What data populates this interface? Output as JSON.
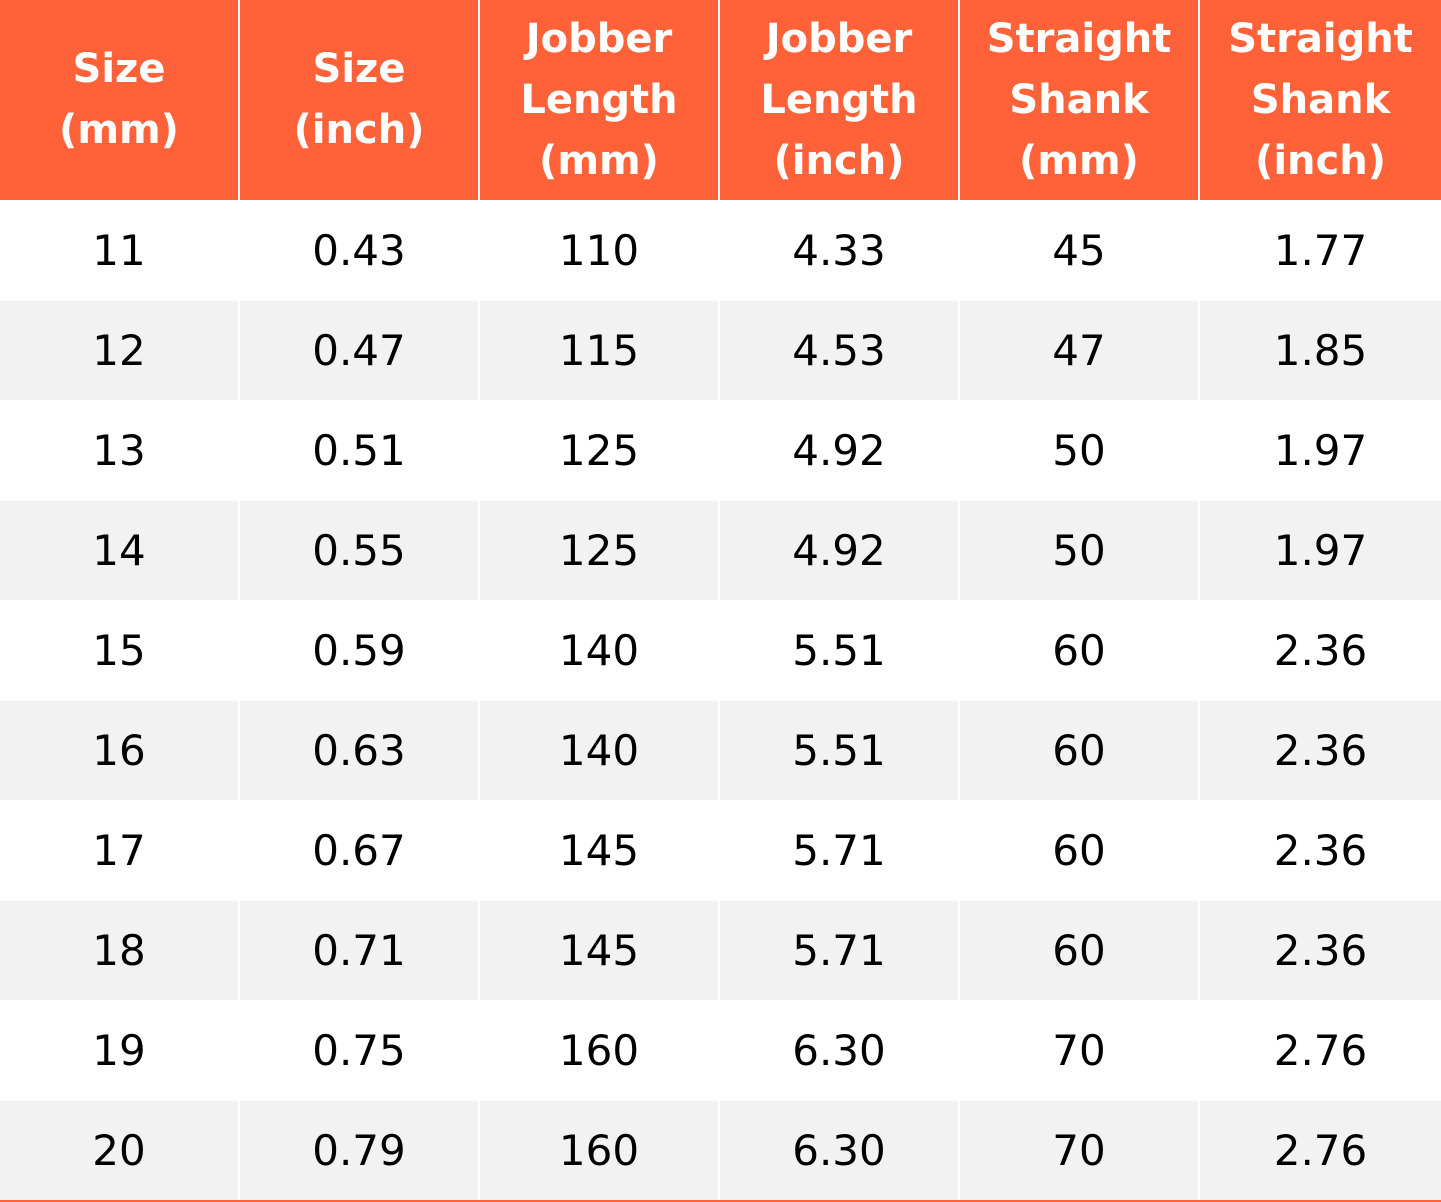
{
  "table": {
    "header": [
      [
        "Size",
        "(mm)"
      ],
      [
        "Size",
        "(inch)"
      ],
      [
        "Jobber",
        "Length",
        "(mm)"
      ],
      [
        "Jobber",
        "Length",
        "(inch)"
      ],
      [
        "Straight",
        "Shank",
        "(mm)"
      ],
      [
        "Straight",
        "Shank",
        "(inch)"
      ]
    ],
    "rows": [
      [
        "11",
        "0.43",
        "110",
        "4.33",
        "45",
        "1.77"
      ],
      [
        "12",
        "0.47",
        "115",
        "4.53",
        "47",
        "1.85"
      ],
      [
        "13",
        "0.51",
        "125",
        "4.92",
        "50",
        "1.97"
      ],
      [
        "14",
        "0.55",
        "125",
        "4.92",
        "50",
        "1.97"
      ],
      [
        "15",
        "0.59",
        "140",
        "5.51",
        "60",
        "2.36"
      ],
      [
        "16",
        "0.63",
        "140",
        "5.51",
        "60",
        "2.36"
      ],
      [
        "17",
        "0.67",
        "145",
        "5.71",
        "60",
        "2.36"
      ],
      [
        "18",
        "0.71",
        "145",
        "5.71",
        "60",
        "2.36"
      ],
      [
        "19",
        "0.75",
        "160",
        "6.30",
        "70",
        "2.76"
      ],
      [
        "20",
        "0.79",
        "160",
        "6.30",
        "70",
        "2.76"
      ]
    ]
  }
}
